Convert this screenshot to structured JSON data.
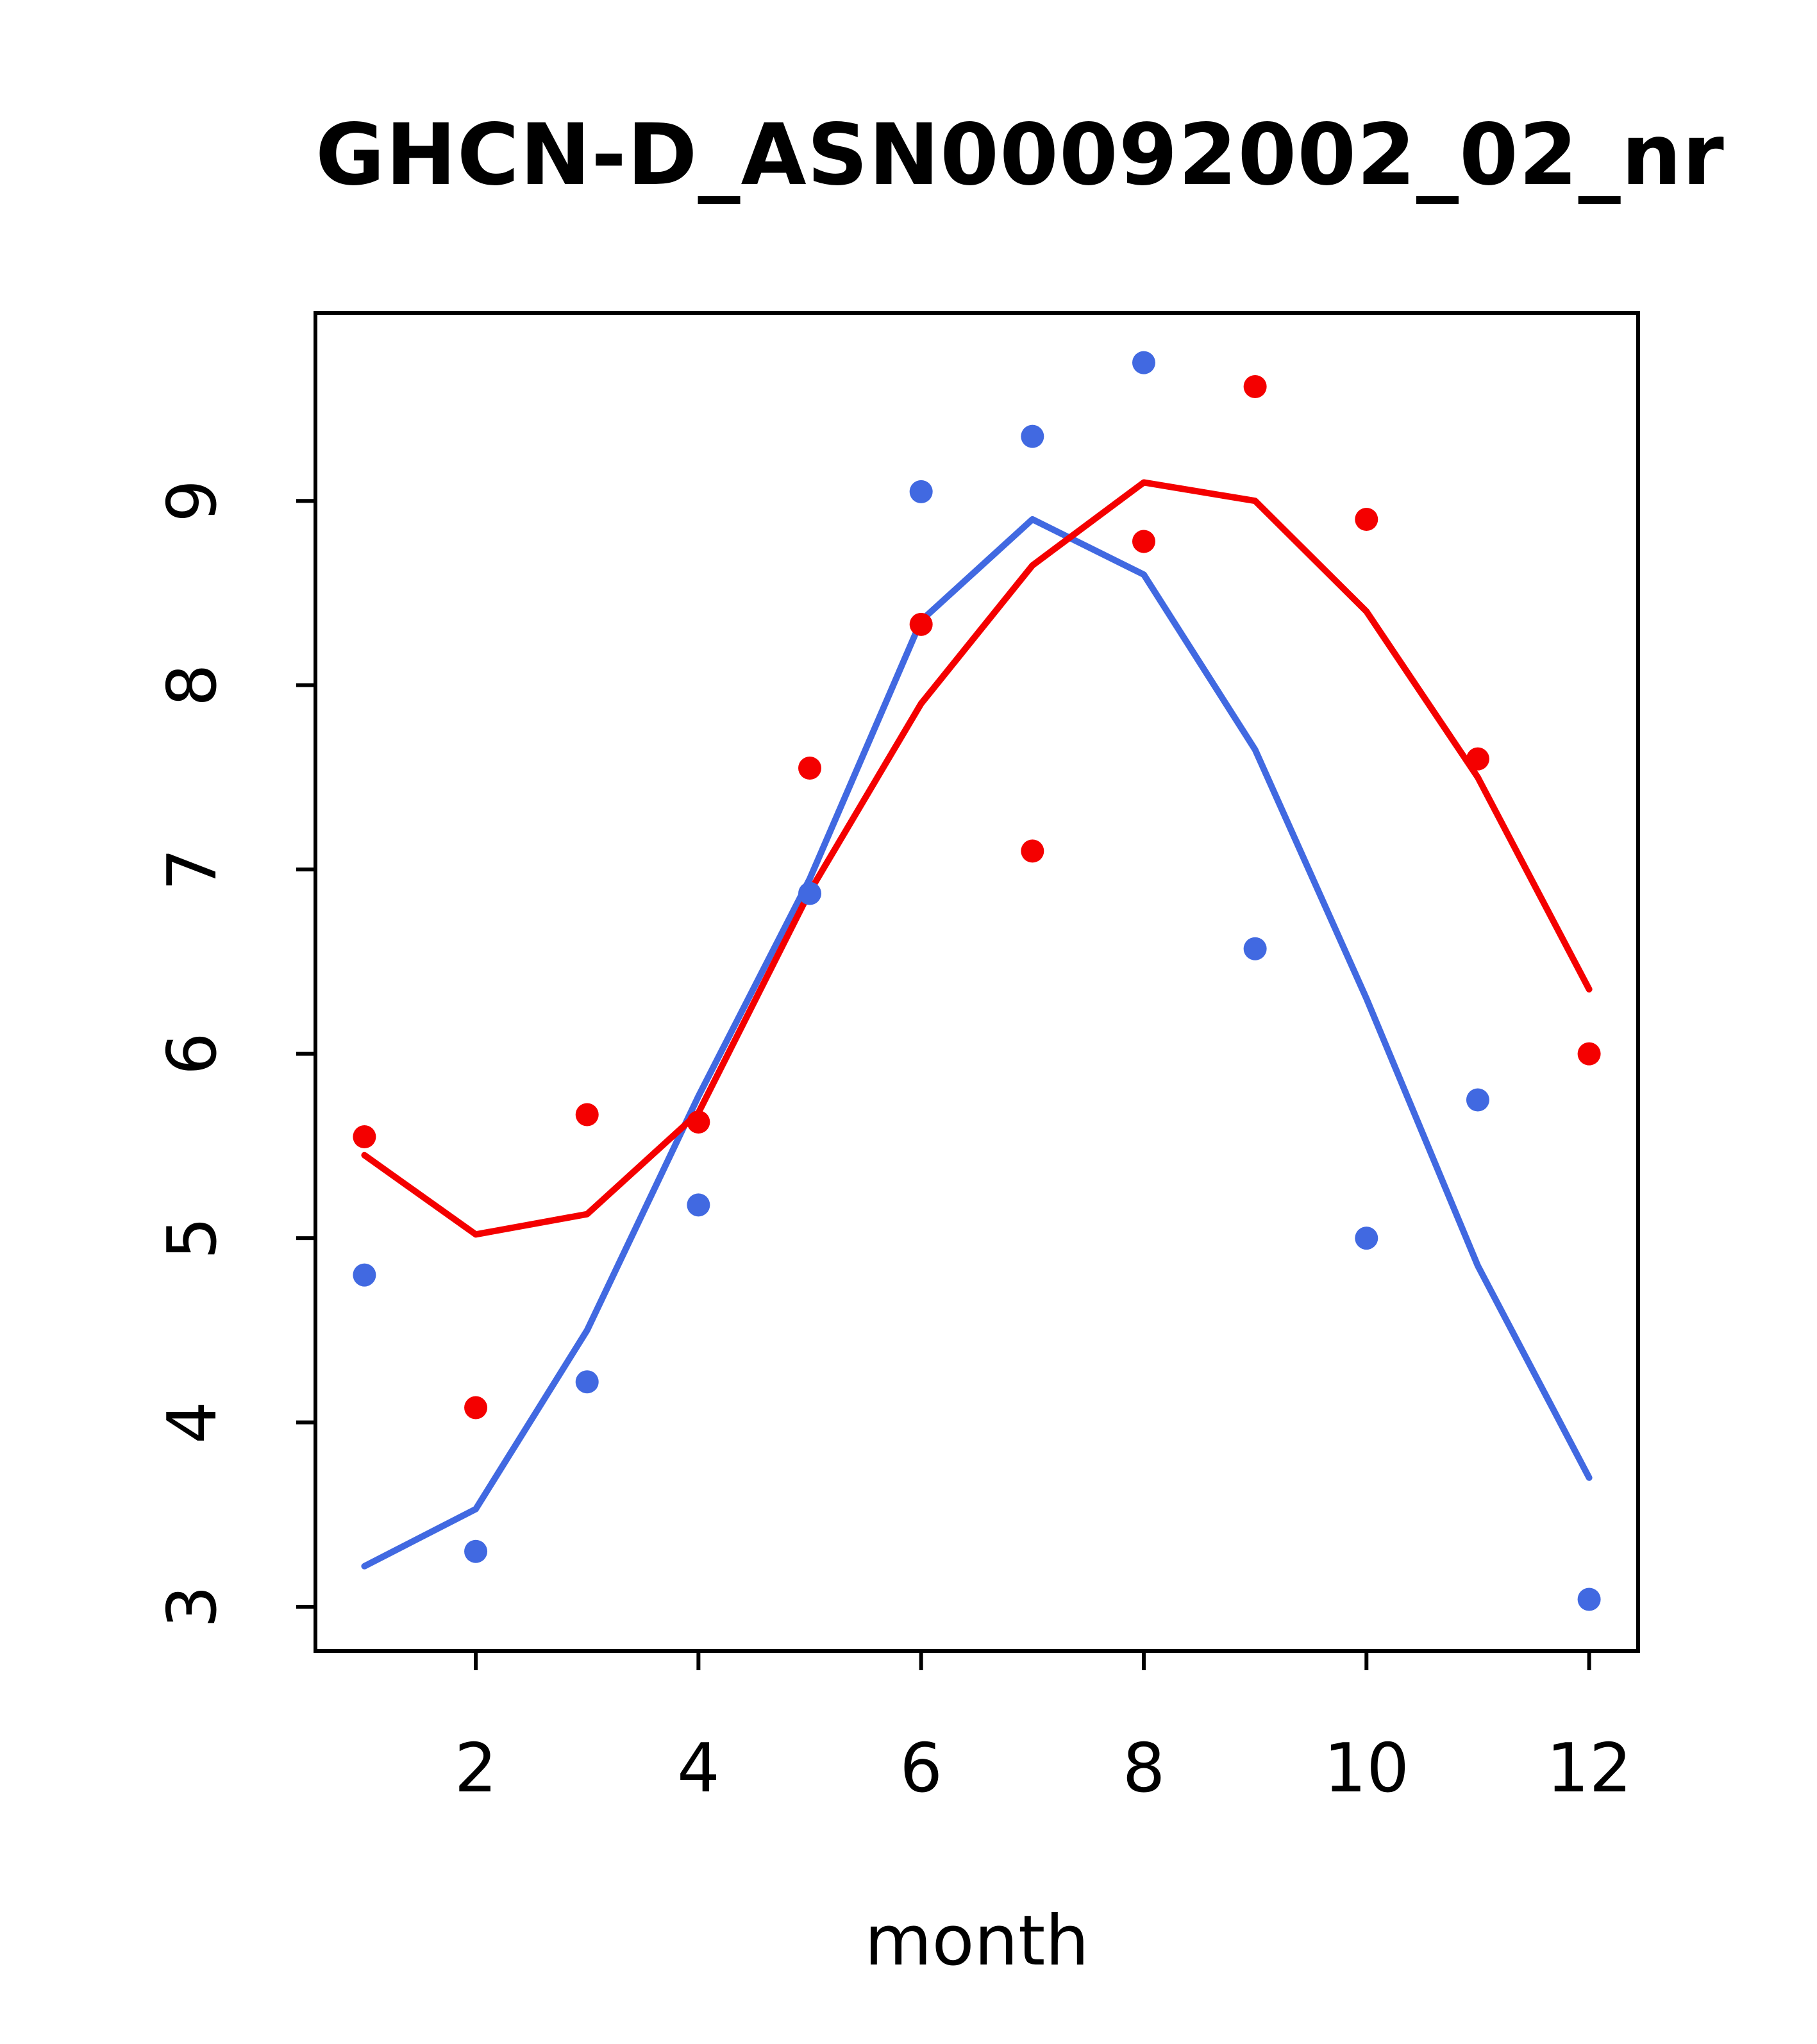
{
  "title": "GHCN-D_ASN00092002_02_nr",
  "chart_data": {
    "type": "scatter",
    "title": "GHCN-D_ASN00092002_02_nr",
    "xlabel": "month",
    "ylabel": "",
    "x": [
      1,
      2,
      3,
      4,
      5,
      6,
      7,
      8,
      9,
      10,
      11,
      12
    ],
    "x_ticks": [
      2,
      4,
      6,
      8,
      10,
      12
    ],
    "y_ticks": [
      3,
      4,
      5,
      6,
      7,
      8,
      9
    ],
    "xlim": [
      0.56,
      12.44
    ],
    "ylim": [
      2.76,
      10.02
    ],
    "grid": false,
    "legend": "none",
    "colors": {
      "blue": "#4169E1",
      "red": "#F40000",
      "axis": "#000000",
      "background": "#ffffff"
    },
    "series": [
      {
        "name": "blue-line",
        "kind": "line",
        "color": "#4169E1",
        "values": [
          3.22,
          3.53,
          4.5,
          5.77,
          6.95,
          8.35,
          8.9,
          8.6,
          7.65,
          6.3,
          4.85,
          3.7
        ]
      },
      {
        "name": "red-line",
        "kind": "line",
        "color": "#F40000",
        "values": [
          5.45,
          5.02,
          5.13,
          5.68,
          6.88,
          7.9,
          8.65,
          9.1,
          9.0,
          8.4,
          7.5,
          6.35
        ]
      },
      {
        "name": "blue-points",
        "kind": "points",
        "color": "#4169E1",
        "values": [
          4.8,
          3.3,
          4.22,
          5.18,
          6.87,
          9.05,
          9.35,
          9.75,
          6.57,
          5.0,
          5.75,
          3.04
        ]
      },
      {
        "name": "red-points",
        "kind": "points",
        "color": "#F40000",
        "values": [
          5.55,
          4.08,
          5.67,
          5.63,
          7.55,
          8.33,
          7.1,
          8.78,
          9.62,
          8.9,
          7.6,
          6.0
        ]
      }
    ]
  },
  "plot_style": {
    "box_stroke_width": 6,
    "tick_length": 30,
    "line_width": 10,
    "point_radius": 18,
    "tick_font_size": 105,
    "x_label_offset": 160,
    "y_label_offset": 185
  }
}
